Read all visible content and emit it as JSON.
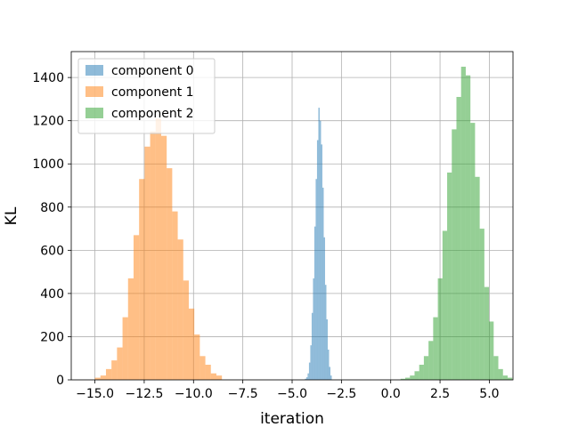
{
  "chart_data": {
    "type": "histogram",
    "xlabel": "iteration",
    "ylabel": "KL",
    "xlim": [
      -16.2,
      6.2
    ],
    "ylim": [
      0,
      1520
    ],
    "xticks": [
      -15.0,
      -12.5,
      -10.0,
      -7.5,
      -5.0,
      -2.5,
      0.0,
      2.5,
      5.0
    ],
    "xtick_labels": [
      "−15.0",
      "−12.5",
      "−10.0",
      "−7.5",
      "−5.0",
      "−2.5",
      "0.0",
      "2.5",
      "5.0"
    ],
    "yticks": [
      0,
      200,
      400,
      600,
      800,
      1000,
      1200,
      1400
    ],
    "ytick_labels": [
      "0",
      "200",
      "400",
      "600",
      "800",
      "1000",
      "1200",
      "1400"
    ],
    "grid": true,
    "legend_placement": "top-left",
    "series": [
      {
        "name": "component 0",
        "color": "#1f77b4",
        "opacity": 0.5,
        "bin_start": -4.35,
        "bin_width": 0.068,
        "counts": [
          5,
          12,
          30,
          80,
          160,
          310,
          470,
          710,
          930,
          1110,
          1260,
          1200,
          1090,
          890,
          660,
          440,
          280,
          140,
          60,
          20
        ]
      },
      {
        "name": "component 1",
        "color": "#ff7f0e",
        "opacity": 0.5,
        "bin_start": -15.0,
        "bin_width": 0.28,
        "counts": [
          10,
          20,
          50,
          90,
          150,
          290,
          470,
          670,
          930,
          1080,
          1150,
          1210,
          1130,
          980,
          780,
          650,
          460,
          330,
          210,
          110,
          70,
          30,
          20
        ]
      },
      {
        "name": "component 2",
        "color": "#2ca02c",
        "opacity": 0.5,
        "bin_start": 0.5,
        "bin_width": 0.236,
        "counts": [
          5,
          10,
          20,
          40,
          70,
          110,
          180,
          290,
          470,
          690,
          960,
          1160,
          1310,
          1450,
          1410,
          1190,
          940,
          700,
          430,
          270,
          110,
          50,
          20,
          10
        ]
      }
    ]
  }
}
